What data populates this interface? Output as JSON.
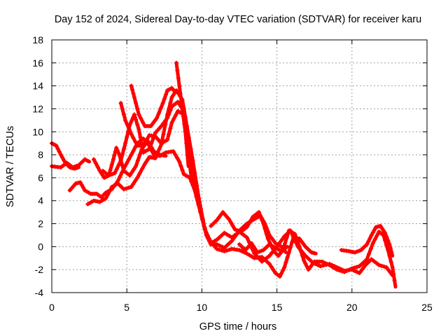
{
  "chart_data": {
    "type": "scatter",
    "title": "Day 152 of 2024, Sidereal Day-to-day VTEC variation (SDTVAR) for receiver karu",
    "xlabel": "GPS time / hours",
    "ylabel": "SDTVAR / TECUs",
    "xlim": [
      0,
      25
    ],
    "ylim": [
      -4,
      18
    ],
    "xticks": [
      0,
      5,
      10,
      15,
      20,
      25
    ],
    "yticks": [
      -4,
      -2,
      0,
      2,
      4,
      6,
      8,
      10,
      12,
      14,
      16,
      18
    ],
    "grid": true,
    "marker": "plus",
    "color": "#ff0000",
    "series": [
      {
        "name": "track-1",
        "points": [
          [
            0,
            7.0
          ],
          [
            0.6,
            6.9
          ],
          [
            1.0,
            7.3
          ],
          [
            1.4,
            6.9
          ],
          [
            1.8,
            7.1
          ],
          [
            2.2,
            7.6
          ],
          [
            2.5,
            7.4
          ]
        ]
      },
      {
        "name": "track-2",
        "points": [
          [
            0,
            9.0
          ],
          [
            0.3,
            8.8
          ],
          [
            0.6,
            8.0
          ],
          [
            0.9,
            7.3
          ],
          [
            1.2,
            6.9
          ],
          [
            1.5,
            6.8
          ],
          [
            1.8,
            6.9
          ]
        ]
      },
      {
        "name": "track-3",
        "points": [
          [
            1.2,
            4.9
          ],
          [
            1.6,
            5.5
          ],
          [
            1.9,
            5.6
          ],
          [
            2.2,
            4.9
          ],
          [
            2.6,
            4.6
          ],
          [
            3.0,
            4.6
          ],
          [
            3.3,
            4.3
          ],
          [
            3.6,
            4.7
          ],
          [
            4.0,
            5.0
          ],
          [
            4.4,
            5.7
          ],
          [
            4.8,
            6.8
          ],
          [
            5.3,
            8.0
          ],
          [
            5.7,
            9.0
          ],
          [
            6.1,
            9.4
          ],
          [
            6.4,
            9.0
          ],
          [
            6.8,
            8.0
          ],
          [
            7.2,
            7.9
          ],
          [
            7.6,
            8.2
          ],
          [
            8.1,
            8.3
          ],
          [
            8.5,
            7.4
          ],
          [
            8.8,
            6.3
          ],
          [
            9.2,
            6.0
          ],
          [
            9.5,
            5.0
          ],
          [
            9.9,
            3.0
          ],
          [
            10.3,
            1.0
          ],
          [
            10.6,
            0.2
          ],
          [
            11.0,
            0.2
          ],
          [
            11.5,
            -0.1
          ],
          [
            12.0,
            0.5
          ],
          [
            12.5,
            1.4
          ],
          [
            13.0,
            2.0
          ],
          [
            13.5,
            2.4
          ],
          [
            13.9,
            2.7
          ],
          [
            14.2,
            2.0
          ],
          [
            14.5,
            1.0
          ],
          [
            14.9,
            0.3
          ],
          [
            15.3,
            0.0
          ],
          [
            15.6,
            -0.5
          ]
        ]
      },
      {
        "name": "track-4",
        "points": [
          [
            2.4,
            3.7
          ],
          [
            2.8,
            4.0
          ],
          [
            3.2,
            3.9
          ],
          [
            3.6,
            4.2
          ],
          [
            4.0,
            5.2
          ],
          [
            4.4,
            5.5
          ],
          [
            4.8,
            5.0
          ],
          [
            5.3,
            5.2
          ],
          [
            5.7,
            6.0
          ],
          [
            6.2,
            7.2
          ],
          [
            6.5,
            7.8
          ],
          [
            6.9,
            7.7
          ],
          [
            7.3,
            8.9
          ],
          [
            7.7,
            11.5
          ],
          [
            8.0,
            13.0
          ],
          [
            8.3,
            13.6
          ],
          [
            8.7,
            12.8
          ],
          [
            9.0,
            10.5
          ],
          [
            9.4,
            7.5
          ],
          [
            9.8,
            4.2
          ],
          [
            10.2,
            1.5
          ],
          [
            10.6,
            0.3
          ],
          [
            11.0,
            0.6
          ],
          [
            11.5,
            1.2
          ],
          [
            12.0,
            0.8
          ],
          [
            12.5,
            1.3
          ],
          [
            13.0,
            0.8
          ],
          [
            13.5,
            -0.6
          ],
          [
            14.0,
            -1.3
          ],
          [
            14.5,
            -0.8
          ],
          [
            15.0,
            0.0
          ],
          [
            15.5,
            0.9
          ],
          [
            15.9,
            1.4
          ],
          [
            16.4,
            0.0
          ],
          [
            16.9,
            -0.8
          ],
          [
            17.4,
            -1.4
          ],
          [
            17.9,
            -1.7
          ],
          [
            18.5,
            -1.5
          ],
          [
            19.0,
            -1.8
          ],
          [
            19.5,
            -2.1
          ],
          [
            20.0,
            -2.0
          ],
          [
            20.5,
            -2.3
          ],
          [
            20.9,
            -1.6
          ],
          [
            21.3,
            -1.1
          ],
          [
            21.8,
            -1.6
          ],
          [
            22.3,
            -1.8
          ],
          [
            22.7,
            -2.5
          ]
        ]
      },
      {
        "name": "track-5",
        "points": [
          [
            2.8,
            7.6
          ],
          [
            3.2,
            6.6
          ],
          [
            3.5,
            6.0
          ],
          [
            3.8,
            6.2
          ],
          [
            4.1,
            7.6
          ],
          [
            4.3,
            8.6
          ],
          [
            4.5,
            8.0
          ],
          [
            4.8,
            6.6
          ],
          [
            5.2,
            6.2
          ],
          [
            5.6,
            7.0
          ],
          [
            6.0,
            8.5
          ],
          [
            6.4,
            9.2
          ],
          [
            6.8,
            8.3
          ],
          [
            7.2,
            8.0
          ],
          [
            7.6,
            7.9
          ]
        ]
      },
      {
        "name": "track-6",
        "points": [
          [
            4.6,
            12.5
          ],
          [
            4.9,
            11.0
          ],
          [
            5.3,
            9.8
          ],
          [
            5.7,
            8.8
          ],
          [
            6.1,
            8.8
          ],
          [
            6.5,
            9.7
          ],
          [
            6.9,
            9.6
          ],
          [
            7.3,
            9.0
          ],
          [
            7.7,
            9.3
          ],
          [
            8.0,
            10.8
          ],
          [
            8.4,
            11.8
          ],
          [
            8.8,
            11.5
          ],
          [
            9.0,
            9.0
          ],
          [
            9.3,
            6.0
          ]
        ]
      },
      {
        "name": "track-7",
        "points": [
          [
            3.4,
            6.6
          ],
          [
            3.8,
            6.2
          ],
          [
            4.2,
            6.4
          ],
          [
            4.6,
            7.5
          ],
          [
            4.9,
            9.0
          ],
          [
            5.2,
            10.6
          ],
          [
            5.5,
            11.5
          ],
          [
            5.8,
            10.2
          ],
          [
            6.1,
            8.2
          ],
          [
            6.5,
            8.5
          ],
          [
            6.9,
            9.9
          ],
          [
            7.3,
            10.5
          ],
          [
            7.7,
            11.2
          ],
          [
            8.0,
            12.2
          ],
          [
            8.4,
            12.6
          ],
          [
            8.7,
            12.0
          ],
          [
            8.9,
            10.0
          ],
          [
            9.1,
            7.0
          ]
        ]
      },
      {
        "name": "track-8",
        "points": [
          [
            5.3,
            14.0
          ],
          [
            5.5,
            13.0
          ],
          [
            5.8,
            11.5
          ],
          [
            6.2,
            10.5
          ],
          [
            6.6,
            10.5
          ],
          [
            7.0,
            11.2
          ],
          [
            7.4,
            12.5
          ],
          [
            7.7,
            13.6
          ],
          [
            8.0,
            13.8
          ],
          [
            8.2,
            13.5
          ]
        ]
      },
      {
        "name": "track-9",
        "points": [
          [
            8.3,
            16.0
          ],
          [
            8.5,
            14.0
          ],
          [
            8.7,
            12.0
          ],
          [
            8.9,
            10.0
          ],
          [
            9.1,
            8.0
          ],
          [
            9.4,
            6.0
          ],
          [
            9.7,
            4.2
          ],
          [
            10.0,
            2.5
          ],
          [
            10.3,
            1.2
          ],
          [
            10.6,
            0.4
          ],
          [
            11.0,
            -0.2
          ],
          [
            11.5,
            -0.4
          ],
          [
            12.0,
            -0.2
          ],
          [
            12.5,
            -0.3
          ],
          [
            13.0,
            -0.6
          ],
          [
            13.5,
            -1.0
          ],
          [
            14.0,
            -0.9
          ],
          [
            14.5,
            -1.5
          ],
          [
            14.9,
            -2.3
          ],
          [
            15.2,
            -2.6
          ],
          [
            15.5,
            -1.8
          ],
          [
            15.8,
            -0.5
          ],
          [
            16.1,
            0.8
          ],
          [
            16.5,
            0.7
          ],
          [
            16.9,
            0.0
          ],
          [
            17.3,
            -0.5
          ],
          [
            17.6,
            -0.6
          ]
        ]
      },
      {
        "name": "track-10",
        "points": [
          [
            10.6,
            1.8
          ],
          [
            11.0,
            2.3
          ],
          [
            11.4,
            3.0
          ],
          [
            11.8,
            2.4
          ],
          [
            12.2,
            1.5
          ],
          [
            12.6,
            1.3
          ],
          [
            13.0,
            1.7
          ],
          [
            13.4,
            2.6
          ],
          [
            13.8,
            3.0
          ],
          [
            14.1,
            2.0
          ],
          [
            14.4,
            0.7
          ],
          [
            14.8,
            -0.4
          ],
          [
            15.1,
            -0.8
          ],
          [
            15.4,
            -0.3
          ],
          [
            15.8,
            1.4
          ],
          [
            16.2,
            1.1
          ],
          [
            16.5,
            0.0
          ],
          [
            16.8,
            -1.2
          ],
          [
            17.1,
            -2.0
          ],
          [
            17.5,
            -1.3
          ],
          [
            18.0,
            -1.3
          ],
          [
            18.5,
            -1.6
          ],
          [
            19.0,
            -2.0
          ],
          [
            19.5,
            -2.2
          ],
          [
            20.0,
            -1.9
          ],
          [
            20.5,
            -1.7
          ],
          [
            21.0,
            -1.1
          ],
          [
            21.4,
            0.3
          ],
          [
            21.8,
            1.3
          ],
          [
            22.1,
            1.0
          ],
          [
            22.4,
            -0.3
          ],
          [
            22.7,
            -1.8
          ],
          [
            22.9,
            -3.5
          ]
        ]
      },
      {
        "name": "track-11",
        "points": [
          [
            12.5,
            0.2
          ],
          [
            12.9,
            -0.3
          ],
          [
            13.3,
            0.3
          ],
          [
            13.7,
            -0.5
          ],
          [
            14.1,
            -0.3
          ],
          [
            14.5,
            0.2
          ],
          [
            14.9,
            -0.1
          ],
          [
            15.3,
            -0.4
          ],
          [
            15.7,
            0.0
          ]
        ]
      },
      {
        "name": "track-12",
        "points": [
          [
            19.3,
            -0.3
          ],
          [
            19.8,
            -0.4
          ],
          [
            20.2,
            -0.5
          ],
          [
            20.6,
            -0.3
          ],
          [
            21.0,
            0.2
          ],
          [
            21.3,
            1.0
          ],
          [
            21.6,
            1.7
          ],
          [
            21.9,
            1.8
          ],
          [
            22.2,
            1.2
          ],
          [
            22.5,
            0.2
          ],
          [
            22.7,
            -0.8
          ]
        ]
      }
    ]
  }
}
